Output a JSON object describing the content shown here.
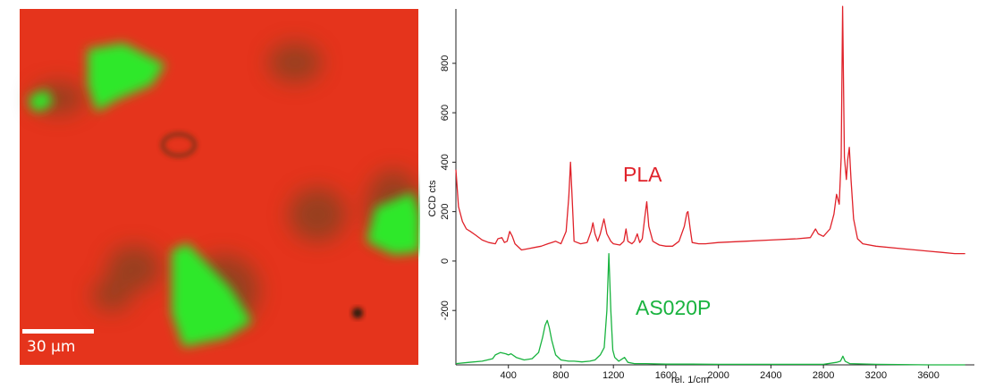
{
  "micrograph": {
    "scale_bar_label": "30 μm",
    "colors": {
      "matrix": "#e5341c",
      "particles": "#2ee82a",
      "dark_regions": "#5a4a22"
    }
  },
  "chart_data": {
    "type": "line",
    "xlabel": "rel. 1/cm",
    "ylabel": "CCD cts",
    "xlim": [
      0,
      3950
    ],
    "ylim": [
      -420,
      1020
    ],
    "x_ticks": [
      400,
      800,
      1200,
      1600,
      2000,
      2400,
      2800,
      3200,
      3600
    ],
    "y_ticks": [
      -200,
      0,
      200,
      400,
      600,
      800
    ],
    "grid": false,
    "series": [
      {
        "name": "PLA",
        "color": "#e0222a",
        "x": [
          0,
          20,
          50,
          80,
          110,
          150,
          200,
          250,
          300,
          320,
          350,
          370,
          390,
          410,
          430,
          450,
          500,
          550,
          600,
          650,
          700,
          730,
          760,
          800,
          840,
          860,
          873,
          886,
          900,
          950,
          1000,
          1030,
          1044,
          1060,
          1080,
          1100,
          1128,
          1150,
          1180,
          1200,
          1250,
          1280,
          1296,
          1310,
          1340,
          1360,
          1382,
          1400,
          1420,
          1440,
          1454,
          1470,
          1500,
          1550,
          1600,
          1650,
          1700,
          1740,
          1760,
          1768,
          1785,
          1800,
          1850,
          1900,
          2000,
          2200,
          2400,
          2600,
          2700,
          2740,
          2760,
          2800,
          2850,
          2880,
          2900,
          2920,
          2935,
          2946,
          2960,
          2975,
          2985,
          2997,
          3010,
          3030,
          3060,
          3100,
          3200,
          3400,
          3600,
          3700,
          3800,
          3880
        ],
        "y": [
          370,
          220,
          160,
          130,
          120,
          105,
          85,
          75,
          70,
          90,
          95,
          75,
          80,
          120,
          100,
          70,
          45,
          50,
          55,
          60,
          70,
          75,
          80,
          70,
          120,
          260,
          400,
          250,
          80,
          70,
          75,
          120,
          155,
          110,
          80,
          110,
          170,
          110,
          80,
          70,
          65,
          80,
          130,
          80,
          70,
          80,
          110,
          75,
          90,
          180,
          240,
          140,
          80,
          65,
          60,
          60,
          80,
          140,
          195,
          200,
          130,
          75,
          70,
          70,
          75,
          80,
          85,
          90,
          95,
          130,
          110,
          100,
          130,
          190,
          270,
          230,
          420,
          1030,
          420,
          330,
          410,
          460,
          330,
          170,
          90,
          70,
          60,
          50,
          40,
          35,
          30,
          30
        ]
      },
      {
        "name": "AS020P",
        "color": "#19b33f",
        "x": [
          0,
          100,
          200,
          280,
          300,
          340,
          380,
          400,
          420,
          460,
          520,
          580,
          630,
          660,
          680,
          696,
          712,
          730,
          760,
          800,
          860,
          900,
          960,
          1020,
          1060,
          1100,
          1130,
          1150,
          1165,
          1180,
          1195,
          1210,
          1240,
          1270,
          1285,
          1310,
          1360,
          1450,
          1600,
          1800,
          2000,
          2200,
          2400,
          2600,
          2800,
          2900,
          2930,
          2948,
          2965,
          3000,
          3200,
          3600,
          3880
        ],
        "y": [
          -415,
          -410,
          -405,
          -395,
          -380,
          -370,
          -375,
          -380,
          -375,
          -390,
          -400,
          -395,
          -370,
          -310,
          -260,
          -240,
          -270,
          -320,
          -380,
          -400,
          -405,
          -405,
          -408,
          -405,
          -400,
          -380,
          -350,
          -200,
          30,
          -200,
          -360,
          -390,
          -405,
          -395,
          -390,
          -410,
          -415,
          -415,
          -417,
          -417,
          -418,
          -418,
          -418,
          -418,
          -418,
          -410,
          -405,
          -385,
          -405,
          -415,
          -418,
          -420,
          -420
        ]
      }
    ],
    "annotations": [
      "PLA",
      "AS020P"
    ]
  }
}
